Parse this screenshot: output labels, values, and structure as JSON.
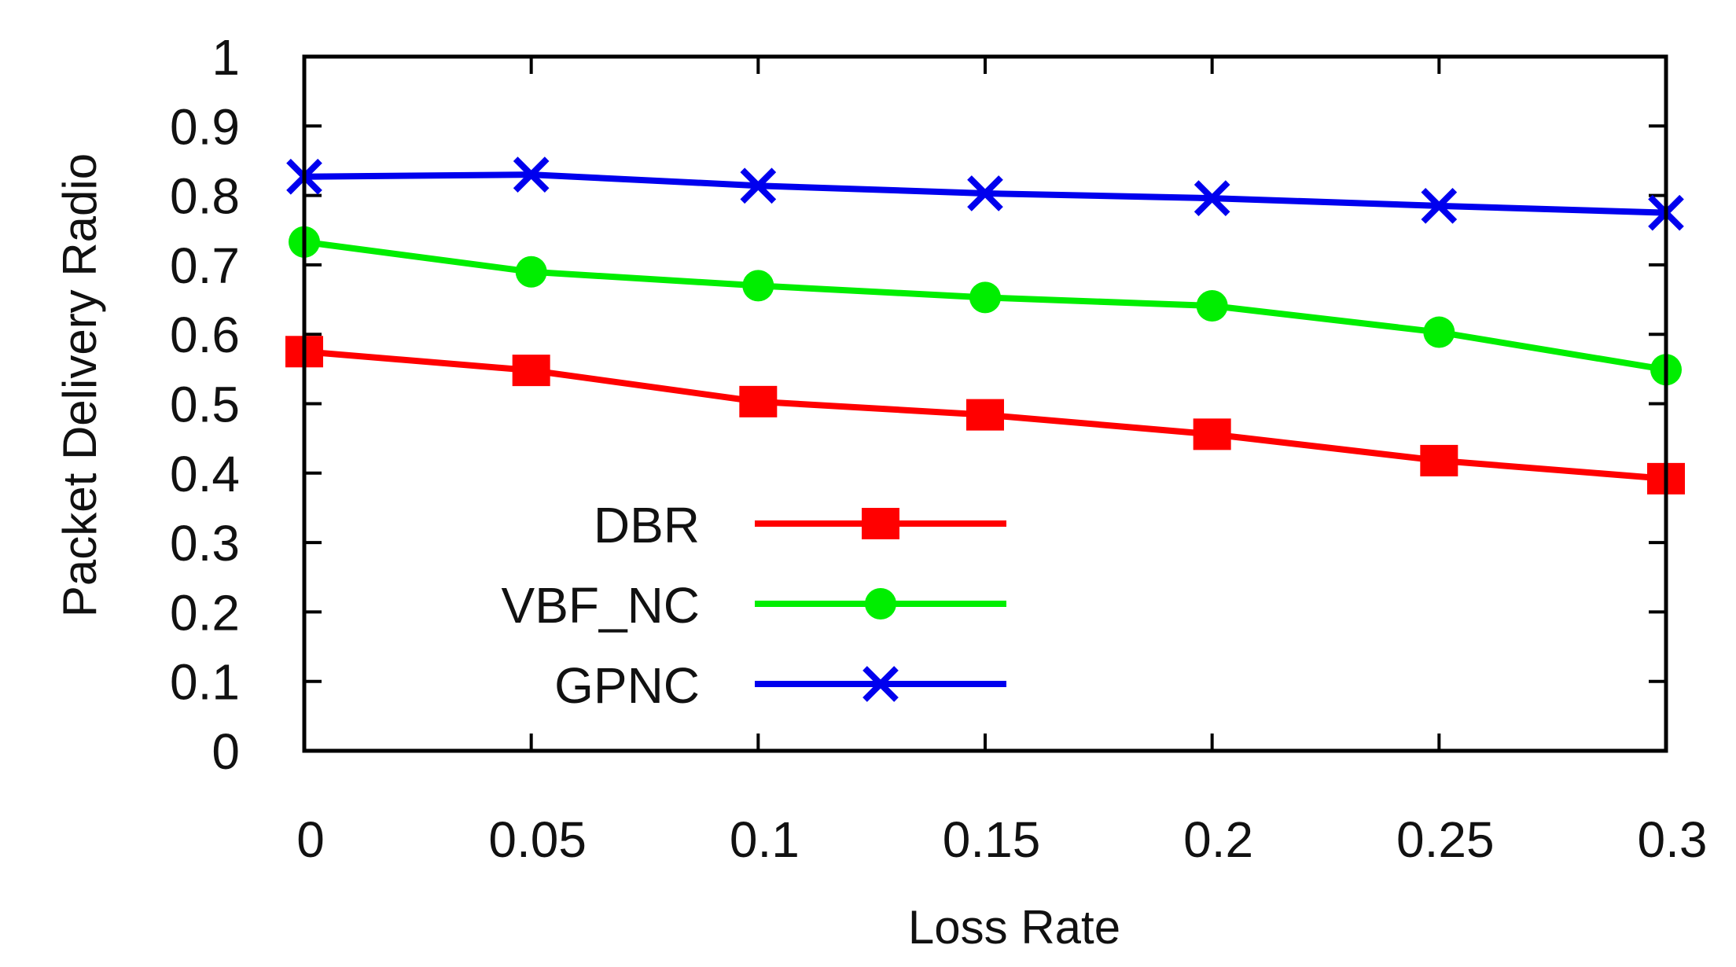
{
  "chart_data": {
    "type": "line",
    "title": "",
    "xlabel": "Loss Rate",
    "ylabel": "Packet Delivery Radio",
    "x": [
      0,
      0.05,
      0.1,
      0.15,
      0.2,
      0.25,
      0.3
    ],
    "xticks": [
      "0",
      "0.05",
      "0.1",
      "0.15",
      "0.2",
      "0.25",
      "0.3"
    ],
    "yticks": [
      "0",
      "0.1",
      "0.2",
      "0.3",
      "0.4",
      "0.5",
      "0.6",
      "0.7",
      "0.8",
      "0.9",
      "1"
    ],
    "xlim": [
      0,
      0.3
    ],
    "ylim": [
      0,
      1
    ],
    "grid": false,
    "legend_position": "bottom-left",
    "series": [
      {
        "name": "DBR",
        "color": "#ff0000",
        "marker": "square",
        "values": [
          0.575,
          0.548,
          0.503,
          0.484,
          0.456,
          0.418,
          0.392
        ]
      },
      {
        "name": "VBF_NC",
        "color": "#00ee00",
        "marker": "circle",
        "values": [
          0.733,
          0.69,
          0.67,
          0.653,
          0.641,
          0.603,
          0.549
        ]
      },
      {
        "name": "GPNC",
        "color": "#0000ee",
        "marker": "cross",
        "values": [
          0.827,
          0.83,
          0.814,
          0.803,
          0.796,
          0.785,
          0.775
        ]
      }
    ]
  }
}
